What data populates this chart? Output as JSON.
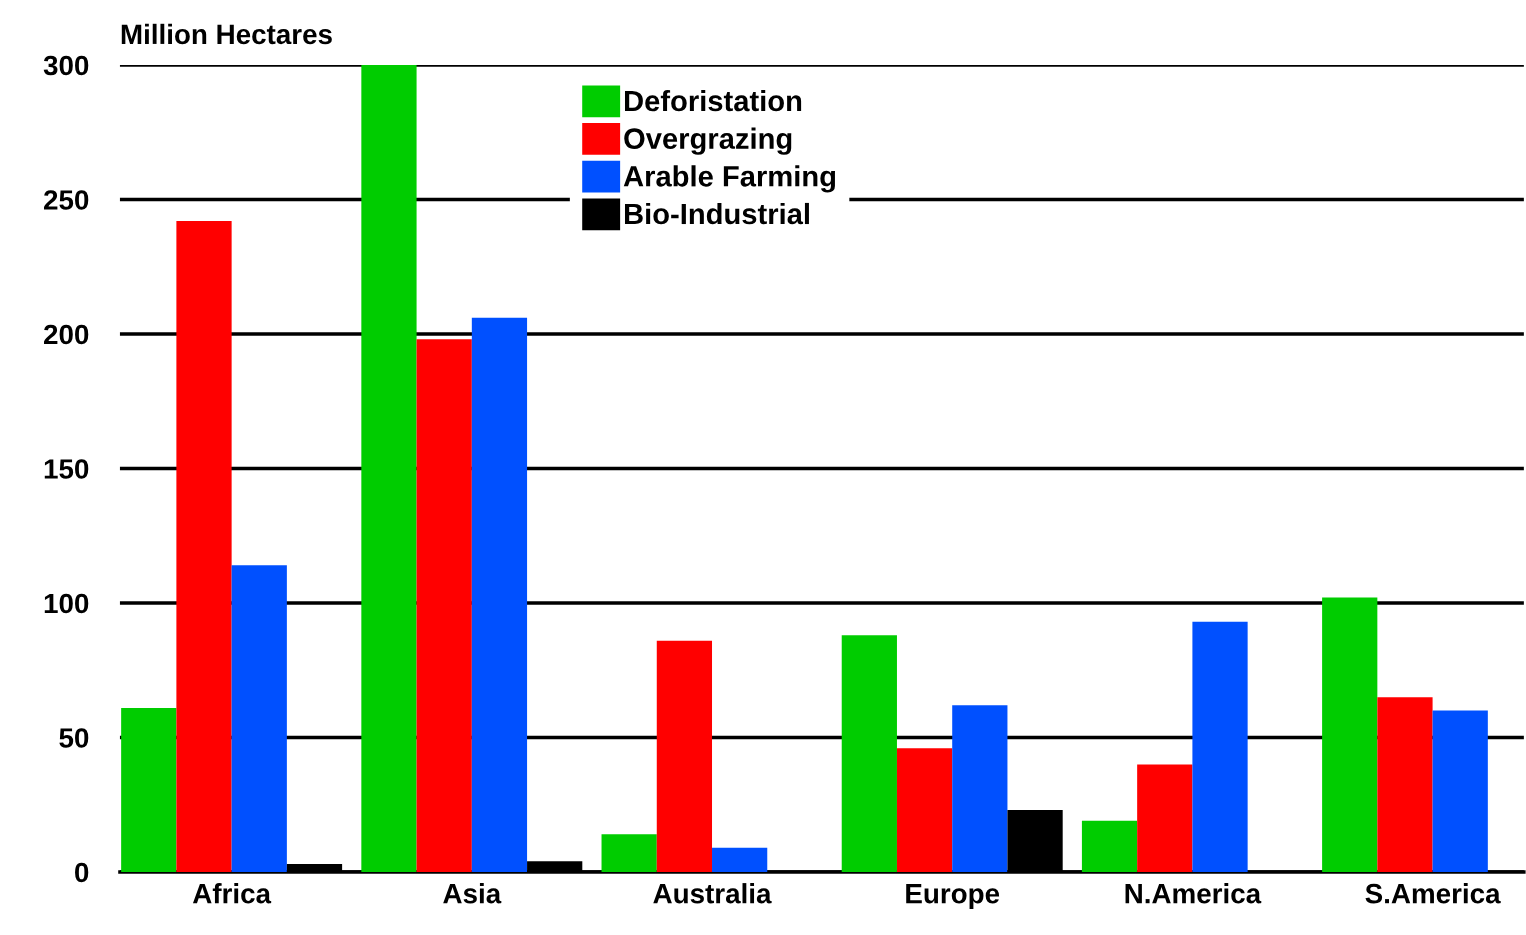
{
  "chart_data": {
    "type": "bar",
    "ylabel": "Million Hectares",
    "categories": [
      "Africa",
      "Asia",
      "Australia",
      "Europe",
      "N.America",
      "S.America"
    ],
    "series": [
      {
        "name": "Deforistation",
        "color": "#00cc00",
        "values": [
          61,
          300,
          14,
          88,
          19,
          102
        ]
      },
      {
        "name": "Overgrazing",
        "color": "#ff0000",
        "values": [
          242,
          198,
          86,
          46,
          40,
          65
        ]
      },
      {
        "name": "Arable Farming",
        "color": "#0050ff",
        "values": [
          114,
          206,
          9,
          62,
          93,
          60
        ]
      },
      {
        "name": "Bio-Industrial",
        "color": "#000000",
        "values": [
          3,
          4,
          null,
          23,
          null,
          null
        ]
      }
    ],
    "ylim": [
      0,
      300
    ],
    "yticks": [
      0,
      50,
      100,
      150,
      200,
      250,
      300
    ],
    "grid": "y",
    "legend": "top"
  }
}
